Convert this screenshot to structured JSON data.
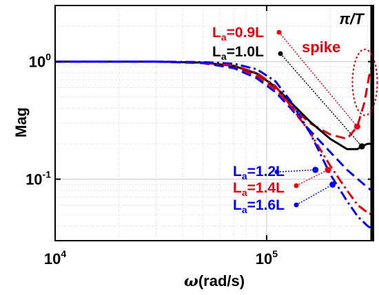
{
  "chart_data": {
    "type": "line",
    "xlabel_omega": "ω",
    "xlabel_unit": "(rad/s)",
    "ylabel": "Mag",
    "x_scale": "log",
    "y_scale": "log",
    "xlim": [
      10000,
      320000
    ],
    "ylim": [
      0.03,
      3
    ],
    "grid": true,
    "x_ticks": [
      {
        "value": 10000,
        "base": "10",
        "exp": "4"
      },
      {
        "value": 100000,
        "base": "10",
        "exp": "5"
      }
    ],
    "y_ticks": [
      {
        "value": 1,
        "base": "10",
        "exp": "0"
      },
      {
        "value": 0.1,
        "base": "10",
        "exp": "-1"
      }
    ],
    "vline": {
      "x": 314000,
      "label_pi": "π",
      "label_slash": "/",
      "label_T": "T"
    },
    "spike_label": "spike",
    "series": [
      {
        "label_L": "L",
        "label_sub": "a",
        "label_rest": "=0.9L",
        "color": "#e8000b",
        "dash": "dash",
        "width": 3,
        "marker": [
          268000,
          0.28
        ],
        "points": [
          [
            10000,
            1.0
          ],
          [
            30000,
            1.0
          ],
          [
            50000,
            0.97
          ],
          [
            70000,
            0.9
          ],
          [
            90000,
            0.75
          ],
          [
            110000,
            0.58
          ],
          [
            130000,
            0.42
          ],
          [
            160000,
            0.3
          ],
          [
            200000,
            0.24
          ],
          [
            240000,
            0.22
          ],
          [
            268000,
            0.28
          ],
          [
            290000,
            0.45
          ],
          [
            305000,
            0.75
          ],
          [
            314000,
            0.92
          ]
        ]
      },
      {
        "label_L": "L",
        "label_sub": "a",
        "label_rest": "=1.0L",
        "color": "#000000",
        "dash": "solid",
        "width": 3,
        "marker": [
          282000,
          0.19
        ],
        "points": [
          [
            10000,
            1.0
          ],
          [
            30000,
            1.0
          ],
          [
            50000,
            0.98
          ],
          [
            70000,
            0.92
          ],
          [
            90000,
            0.79
          ],
          [
            110000,
            0.61
          ],
          [
            130000,
            0.45
          ],
          [
            160000,
            0.31
          ],
          [
            200000,
            0.22
          ],
          [
            240000,
            0.18
          ],
          [
            268000,
            0.18
          ],
          [
            282000,
            0.19
          ],
          [
            300000,
            0.2
          ],
          [
            314000,
            0.2
          ]
        ]
      },
      {
        "label_L": "L",
        "label_sub": "a",
        "label_rest": "=1.2L",
        "color": "#0000ff",
        "dash": "dash",
        "width": 3,
        "marker": [
          170000,
          0.12
        ],
        "points": [
          [
            10000,
            1.0
          ],
          [
            30000,
            1.0
          ],
          [
            50000,
            0.97
          ],
          [
            70000,
            0.88
          ],
          [
            90000,
            0.72
          ],
          [
            110000,
            0.55
          ],
          [
            130000,
            0.4
          ],
          [
            160000,
            0.26
          ],
          [
            200000,
            0.17
          ],
          [
            240000,
            0.12
          ],
          [
            270000,
            0.1
          ],
          [
            300000,
            0.085
          ],
          [
            314000,
            0.08
          ]
        ]
      },
      {
        "label_L": "L",
        "label_sub": "a",
        "label_rest": "=1.4L",
        "color": "#e8000b",
        "dash": "dashdot",
        "width": 3,
        "marker": [
          195000,
          0.12
        ],
        "points": [
          [
            10000,
            1.0
          ],
          [
            30000,
            1.0
          ],
          [
            50000,
            0.98
          ],
          [
            70000,
            0.93
          ],
          [
            90000,
            0.8
          ],
          [
            110000,
            0.62
          ],
          [
            130000,
            0.42
          ],
          [
            160000,
            0.25
          ],
          [
            200000,
            0.13
          ],
          [
            240000,
            0.08
          ],
          [
            270000,
            0.06
          ],
          [
            300000,
            0.052
          ],
          [
            314000,
            0.05
          ]
        ]
      },
      {
        "label_L": "L",
        "label_sub": "a",
        "label_rest": "=1.6L",
        "color": "#0000ff",
        "dash": "dashdot",
        "width": 3,
        "marker": [
          205000,
          0.09
        ],
        "points": [
          [
            10000,
            1.0
          ],
          [
            30000,
            1.0
          ],
          [
            50000,
            0.99
          ],
          [
            70000,
            0.96
          ],
          [
            90000,
            0.86
          ],
          [
            110000,
            0.68
          ],
          [
            130000,
            0.46
          ],
          [
            160000,
            0.25
          ],
          [
            200000,
            0.11
          ],
          [
            240000,
            0.065
          ],
          [
            270000,
            0.048
          ],
          [
            300000,
            0.04
          ],
          [
            314000,
            0.038
          ]
        ]
      }
    ]
  }
}
